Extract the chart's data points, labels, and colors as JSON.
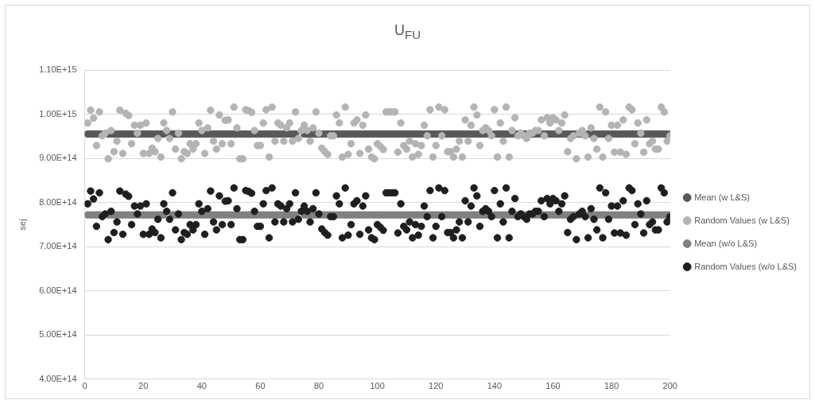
{
  "chart_data": {
    "type": "scatter",
    "title": "U$_{FU}$",
    "ylabel": "sej",
    "xlim": [
      0,
      200
    ],
    "xticks": [
      0,
      20,
      40,
      60,
      80,
      100,
      120,
      140,
      160,
      180,
      200
    ],
    "ylim": [
      400000000000000.0,
      1100000000000000.0
    ],
    "yticks": [
      {
        "value": 400000000000000.0,
        "label": "4.00E+14"
      },
      {
        "value": 500000000000000.0,
        "label": "5.00E+14"
      },
      {
        "value": 600000000000000.0,
        "label": "6.00E+14"
      },
      {
        "value": 700000000000000.0,
        "label": "7.00E+14"
      },
      {
        "value": 800000000000000.0,
        "label": "8.00E+14"
      },
      {
        "value": 900000000000000.0,
        "label": "9.00E+14"
      },
      {
        "value": 1000000000000000.0,
        "label": "1.00E+15"
      },
      {
        "value": 1100000000000000.0,
        "label": "1.10E+15"
      }
    ],
    "grid": "y",
    "legend": "right",
    "marker": "circle",
    "x": [
      1,
      2,
      3,
      4,
      5,
      6,
      7,
      8,
      9,
      10,
      11,
      12,
      13,
      14,
      15,
      16,
      17,
      18,
      19,
      20,
      21,
      22,
      23,
      24,
      25,
      26,
      27,
      28,
      29,
      30,
      31,
      32,
      33,
      34,
      35,
      36,
      37,
      38,
      39,
      40,
      41,
      42,
      43,
      44,
      45,
      46,
      47,
      48,
      49,
      50,
      51,
      52,
      53,
      54,
      55,
      56,
      57,
      58,
      59,
      60,
      61,
      62,
      63,
      64,
      65,
      66,
      67,
      68,
      69,
      70,
      71,
      72,
      73,
      74,
      75,
      76,
      77,
      78,
      79,
      80,
      81,
      82,
      83,
      84,
      85,
      86,
      87,
      88,
      89,
      90,
      91,
      92,
      93,
      94,
      95,
      96,
      97,
      98,
      99,
      100,
      101,
      102,
      103,
      104,
      105,
      106,
      107,
      108,
      109,
      110,
      111,
      112,
      113,
      114,
      115,
      116,
      117,
      118,
      119,
      120,
      121,
      122,
      123,
      124,
      125,
      126,
      127,
      128,
      129,
      130,
      131,
      132,
      133,
      134,
      135,
      136,
      137,
      138,
      139,
      140,
      141,
      142,
      143,
      144,
      145,
      146,
      147,
      148,
      149,
      150,
      151,
      152,
      153,
      154,
      155,
      156,
      157,
      158,
      159,
      160,
      161,
      162,
      163,
      164,
      165,
      166,
      167,
      168,
      169,
      170,
      171,
      172,
      173,
      174,
      175,
      176,
      177,
      178,
      179,
      180,
      181,
      182,
      183,
      184,
      185,
      186,
      187,
      188,
      189,
      190,
      191,
      192,
      193,
      194,
      195,
      196,
      197,
      198,
      199,
      200
    ],
    "series": [
      {
        "name": "Mean (w L&S)",
        "color": "#595959",
        "values": [
          955000000000000.0,
          955000000000000.0,
          955000000000000.0,
          955000000000000.0,
          955000000000000.0,
          955000000000000.0,
          null,
          955000000000000.0,
          955000000000000.0,
          955000000000000.0,
          955000000000000.0,
          955000000000000.0,
          955000000000000.0,
          955000000000000.0,
          955000000000000.0,
          955000000000000.0,
          955000000000000.0,
          955000000000000.0,
          955000000000000.0,
          955000000000000.0,
          955000000000000.0,
          955000000000000.0,
          955000000000000.0,
          955000000000000.0,
          955000000000000.0,
          955000000000000.0,
          955000000000000.0,
          null,
          955000000000000.0,
          955000000000000.0,
          955000000000000.0,
          955000000000000.0,
          955000000000000.0,
          955000000000000.0,
          955000000000000.0,
          955000000000000.0,
          955000000000000.0,
          955000000000000.0,
          955000000000000.0,
          955000000000000.0,
          955000000000000.0,
          955000000000000.0,
          955000000000000.0,
          955000000000000.0,
          955000000000000.0,
          955000000000000.0,
          955000000000000.0,
          955000000000000.0,
          955000000000000.0,
          955000000000000.0,
          955000000000000.0,
          955000000000000.0,
          955000000000000.0,
          955000000000000.0,
          955000000000000.0,
          955000000000000.0,
          955000000000000.0,
          955000000000000.0,
          955000000000000.0,
          955000000000000.0,
          955000000000000.0,
          955000000000000.0,
          955000000000000.0,
          955000000000000.0,
          955000000000000.0,
          955000000000000.0,
          955000000000000.0,
          955000000000000.0,
          955000000000000.0,
          955000000000000.0,
          955000000000000.0,
          955000000000000.0,
          null,
          null,
          955000000000000.0,
          955000000000000.0,
          955000000000000.0,
          955000000000000.0,
          955000000000000.0,
          955000000000000.0,
          955000000000000.0,
          955000000000000.0,
          955000000000000.0,
          955000000000000.0,
          955000000000000.0,
          955000000000000.0,
          955000000000000.0,
          955000000000000.0,
          955000000000000.0,
          955000000000000.0,
          955000000000000.0,
          955000000000000.0,
          955000000000000.0,
          955000000000000.0,
          955000000000000.0,
          955000000000000.0,
          955000000000000.0,
          955000000000000.0,
          955000000000000.0,
          955000000000000.0,
          955000000000000.0,
          955000000000000.0,
          955000000000000.0,
          955000000000000.0,
          955000000000000.0,
          955000000000000.0,
          955000000000000.0,
          955000000000000.0,
          955000000000000.0,
          955000000000000.0,
          955000000000000.0,
          955000000000000.0,
          955000000000000.0,
          955000000000000.0,
          955000000000000.0,
          955000000000000.0,
          955000000000000.0,
          955000000000000.0,
          955000000000000.0,
          955000000000000.0,
          955000000000000.0,
          955000000000000.0,
          955000000000000.0,
          955000000000000.0,
          955000000000000.0,
          955000000000000.0,
          955000000000000.0,
          955000000000000.0,
          955000000000000.0,
          955000000000000.0,
          955000000000000.0,
          955000000000000.0,
          955000000000000.0,
          955000000000000.0,
          955000000000000.0,
          955000000000000.0,
          955000000000000.0,
          955000000000000.0,
          null,
          955000000000000.0,
          955000000000000.0,
          955000000000000.0,
          955000000000000.0,
          955000000000000.0,
          955000000000000.0,
          955000000000000.0,
          955000000000000.0,
          955000000000000.0,
          null,
          955000000000000.0,
          955000000000000.0,
          null,
          955000000000000.0,
          955000000000000.0,
          955000000000000.0,
          955000000000000.0,
          955000000000000.0,
          955000000000000.0,
          955000000000000.0,
          955000000000000.0,
          955000000000000.0,
          955000000000000.0,
          955000000000000.0,
          955000000000000.0,
          955000000000000.0,
          955000000000000.0,
          955000000000000.0,
          955000000000000.0,
          955000000000000.0,
          955000000000000.0,
          null,
          955000000000000.0,
          955000000000000.0,
          955000000000000.0,
          955000000000000.0,
          955000000000000.0,
          955000000000000.0,
          955000000000000.0,
          955000000000000.0,
          955000000000000.0,
          955000000000000.0,
          955000000000000.0,
          955000000000000.0,
          955000000000000.0,
          955000000000000.0,
          955000000000000.0,
          955000000000000.0,
          955000000000000.0,
          955000000000000.0,
          955000000000000.0,
          955000000000000.0,
          955000000000000.0,
          955000000000000.0,
          955000000000000.0,
          955000000000000.0,
          955000000000000.0,
          955000000000000.0,
          955000000000000.0,
          955000000000000.0,
          955000000000000.0
        ]
      },
      {
        "name": "Random Values (w L&S)",
        "color": "#b4b4b4",
        "values": [
          980000000000000.0,
          1009000000000000.0,
          991000000000000.0,
          929000000000000.0,
          1005000000000000.0,
          951000000000000.0,
          957000000000000.0,
          899000000000000.0,
          963000000000000.0,
          915000000000000.0,
          939000000000000.0,
          1009000000000000.0,
          911000000000000.0,
          1002000000000000.0,
          997000000000000.0,
          933000000000000.0,
          975000000000000.0,
          957000000000000.0,
          975000000000000.0,
          911000000000000.0,
          980000000000000.0,
          911000000000000.0,
          923000000000000.0,
          915000000000000.0,
          945000000000000.0,
          903000000000000.0,
          980000000000000.0,
          963000000000000.0,
          945000000000000.0,
          1005000000000000.0,
          921000000000000.0,
          957000000000000.0,
          899000000000000.0,
          915000000000000.0,
          911000000000000.0,
          933000000000000.0,
          921000000000000.0,
          933000000000000.0,
          980000000000000.0,
          963000000000000.0,
          911000000000000.0,
          969000000000000.0,
          1009000000000000.0,
          939000000000000.0,
          921000000000000.0,
          998000000000000.0,
          933000000000000.0,
          986000000000000.0,
          987000000000000.0,
          933000000000000.0,
          1016000000000000.0,
          969000000000000.0,
          899000000000000.0,
          899000000000000.0,
          1010000000000000.0,
          1008000000000000.0,
          1004000000000000.0,
          963000000000000.0,
          929000000000000.0,
          929000000000000.0,
          980000000000000.0,
          1010000000000000.0,
          903000000000000.0,
          1016000000000000.0,
          939000000000000.0,
          980000000000000.0,
          975000000000000.0,
          939000000000000.0,
          969000000000000.0,
          980000000000000.0,
          939000000000000.0,
          1005000000000000.0,
          945000000000000.0,
          963000000000000.0,
          975000000000000.0,
          963000000000000.0,
          939000000000000.0,
          969000000000000.0,
          1005000000000000.0,
          957000000000000.0,
          923000000000000.0,
          915000000000000.0,
          909000000000000.0,
          951000000000000.0,
          951000000000000.0,
          998000000000000.0,
          980000000000000.0,
          903000000000000.0,
          1016000000000000.0,
          909000000000000.0,
          933000000000000.0,
          980000000000000.0,
          987000000000000.0,
          911000000000000.0,
          975000000000000.0,
          998000000000000.0,
          921000000000000.0,
          903000000000000.0,
          899000000000000.0,
          933000000000000.0,
          927000000000000.0,
          920000000000000.0,
          1005000000000000.0,
          1005000000000000.0,
          1005000000000000.0,
          1005000000000000.0,
          914000000000000.0,
          980000000000000.0,
          929000000000000.0,
          921000000000000.0,
          939000000000000.0,
          903000000000000.0,
          933000000000000.0,
          909000000000000.0,
          929000000000000.0,
          975000000000000.0,
          951000000000000.0,
          1010000000000000.0,
          903000000000000.0,
          929000000000000.0,
          1016000000000000.0,
          951000000000000.0,
          1010000000000000.0,
          915000000000000.0,
          915000000000000.0,
          903000000000000.0,
          921000000000000.0,
          939000000000000.0,
          903000000000000.0,
          987000000000000.0,
          939000000000000.0,
          975000000000000.0,
          1016000000000000.0,
          998000000000000.0,
          929000000000000.0,
          963000000000000.0,
          969000000000000.0,
          963000000000000.0,
          951000000000000.0,
          1010000000000000.0,
          903000000000000.0,
          980000000000000.0,
          939000000000000.0,
          1016000000000000.0,
          903000000000000.0,
          963000000000000.0,
          992000000000000.0,
          951000000000000.0,
          957000000000000.0,
          951000000000000.0,
          945000000000000.0,
          957000000000000.0,
          957000000000000.0,
          963000000000000.0,
          963000000000000.0,
          987000000000000.0,
          951000000000000.0,
          992000000000000.0,
          980000000000000.0,
          992000000000000.0,
          987000000000000.0,
          963000000000000.0,
          980000000000000.0,
          998000000000000.0,
          915000000000000.0,
          945000000000000.0,
          951000000000000.0,
          899000000000000.0,
          957000000000000.0,
          963000000000000.0,
          951000000000000.0,
          903000000000000.0,
          969000000000000.0,
          945000000000000.0,
          921000000000000.0,
          1016000000000000.0,
          903000000000000.0,
          1005000000000000.0,
          945000000000000.0,
          975000000000000.0,
          914000000000000.0,
          975000000000000.0,
          914000000000000.0,
          987000000000000.0,
          909000000000000.0,
          1016000000000000.0,
          1010000000000000.0,
          933000000000000.0,
          980000000000000.0,
          957000000000000.0,
          914000000000000.0,
          987000000000000.0,
          933000000000000.0,
          939000000000000.0,
          921000000000000.0,
          921000000000000.0,
          1016000000000000.0,
          1005000000000000.0,
          939000000000000.0,
          951000000000000.0
        ]
      },
      {
        "name": "Mean (w/o L&S)",
        "color": "#808080",
        "values": [
          772000000000000.0,
          772000000000000.0,
          772000000000000.0,
          772000000000000.0,
          772000000000000.0,
          772000000000000.0,
          null,
          772000000000000.0,
          772000000000000.0,
          772000000000000.0,
          772000000000000.0,
          772000000000000.0,
          772000000000000.0,
          772000000000000.0,
          772000000000000.0,
          772000000000000.0,
          772000000000000.0,
          772000000000000.0,
          772000000000000.0,
          772000000000000.0,
          772000000000000.0,
          772000000000000.0,
          772000000000000.0,
          772000000000000.0,
          772000000000000.0,
          772000000000000.0,
          772000000000000.0,
          null,
          null,
          772000000000000.0,
          772000000000000.0,
          772000000000000.0,
          772000000000000.0,
          772000000000000.0,
          772000000000000.0,
          772000000000000.0,
          772000000000000.0,
          772000000000000.0,
          772000000000000.0,
          772000000000000.0,
          772000000000000.0,
          772000000000000.0,
          772000000000000.0,
          772000000000000.0,
          772000000000000.0,
          772000000000000.0,
          772000000000000.0,
          772000000000000.0,
          772000000000000.0,
          772000000000000.0,
          772000000000000.0,
          772000000000000.0,
          772000000000000.0,
          772000000000000.0,
          772000000000000.0,
          772000000000000.0,
          772000000000000.0,
          772000000000000.0,
          772000000000000.0,
          772000000000000.0,
          772000000000000.0,
          772000000000000.0,
          772000000000000.0,
          772000000000000.0,
          772000000000000.0,
          772000000000000.0,
          772000000000000.0,
          772000000000000.0,
          772000000000000.0,
          772000000000000.0,
          772000000000000.0,
          772000000000000.0,
          null,
          null,
          772000000000000.0,
          772000000000000.0,
          772000000000000.0,
          772000000000000.0,
          772000000000000.0,
          772000000000000.0,
          772000000000000.0,
          772000000000000.0,
          772000000000000.0,
          772000000000000.0,
          772000000000000.0,
          772000000000000.0,
          772000000000000.0,
          772000000000000.0,
          772000000000000.0,
          772000000000000.0,
          772000000000000.0,
          772000000000000.0,
          772000000000000.0,
          772000000000000.0,
          772000000000000.0,
          772000000000000.0,
          772000000000000.0,
          772000000000000.0,
          772000000000000.0,
          772000000000000.0,
          772000000000000.0,
          772000000000000.0,
          772000000000000.0,
          772000000000000.0,
          772000000000000.0,
          772000000000000.0,
          772000000000000.0,
          772000000000000.0,
          772000000000000.0,
          772000000000000.0,
          772000000000000.0,
          772000000000000.0,
          772000000000000.0,
          772000000000000.0,
          772000000000000.0,
          772000000000000.0,
          772000000000000.0,
          772000000000000.0,
          772000000000000.0,
          772000000000000.0,
          772000000000000.0,
          772000000000000.0,
          772000000000000.0,
          772000000000000.0,
          772000000000000.0,
          772000000000000.0,
          772000000000000.0,
          772000000000000.0,
          772000000000000.0,
          772000000000000.0,
          772000000000000.0,
          772000000000000.0,
          772000000000000.0,
          772000000000000.0,
          772000000000000.0,
          772000000000000.0,
          772000000000000.0,
          772000000000000.0,
          null,
          772000000000000.0,
          772000000000000.0,
          772000000000000.0,
          772000000000000.0,
          772000000000000.0,
          772000000000000.0,
          772000000000000.0,
          772000000000000.0,
          772000000000000.0,
          null,
          772000000000000.0,
          772000000000000.0,
          null,
          772000000000000.0,
          772000000000000.0,
          772000000000000.0,
          772000000000000.0,
          772000000000000.0,
          772000000000000.0,
          772000000000000.0,
          772000000000000.0,
          772000000000000.0,
          772000000000000.0,
          772000000000000.0,
          772000000000000.0,
          772000000000000.0,
          772000000000000.0,
          772000000000000.0,
          772000000000000.0,
          772000000000000.0,
          null,
          null,
          772000000000000.0,
          772000000000000.0,
          772000000000000.0,
          772000000000000.0,
          772000000000000.0,
          772000000000000.0,
          772000000000000.0,
          772000000000000.0,
          772000000000000.0,
          772000000000000.0,
          772000000000000.0,
          772000000000000.0,
          772000000000000.0,
          772000000000000.0,
          772000000000000.0,
          772000000000000.0,
          772000000000000.0,
          772000000000000.0,
          772000000000000.0,
          772000000000000.0,
          772000000000000.0,
          772000000000000.0,
          772000000000000.0,
          772000000000000.0,
          772000000000000.0,
          772000000000000.0,
          772000000000000.0,
          772000000000000.0,
          772000000000000.0
        ]
      },
      {
        "name": "Random Values (w/o L&S)",
        "color": "#1f1f1f",
        "values": [
          797000000000000.0,
          826000000000000.0,
          808000000000000.0,
          746000000000000.0,
          822000000000000.0,
          768000000000000.0,
          774000000000000.0,
          716000000000000.0,
          780000000000000.0,
          732000000000000.0,
          756000000000000.0,
          826000000000000.0,
          728000000000000.0,
          819000000000000.0,
          814000000000000.0,
          750000000000000.0,
          792000000000000.0,
          774000000000000.0,
          792000000000000.0,
          728000000000000.0,
          797000000000000.0,
          728000000000000.0,
          740000000000000.0,
          732000000000000.0,
          762000000000000.0,
          720000000000000.0,
          797000000000000.0,
          780000000000000.0,
          762000000000000.0,
          822000000000000.0,
          738000000000000.0,
          774000000000000.0,
          716000000000000.0,
          732000000000000.0,
          728000000000000.0,
          750000000000000.0,
          738000000000000.0,
          750000000000000.0,
          797000000000000.0,
          780000000000000.0,
          728000000000000.0,
          786000000000000.0,
          826000000000000.0,
          756000000000000.0,
          738000000000000.0,
          815000000000000.0,
          750000000000000.0,
          803000000000000.0,
          804000000000000.0,
          750000000000000.0,
          833000000000000.0,
          786000000000000.0,
          716000000000000.0,
          716000000000000.0,
          827000000000000.0,
          825000000000000.0,
          821000000000000.0,
          780000000000000.0,
          746000000000000.0,
          746000000000000.0,
          797000000000000.0,
          827000000000000.0,
          720000000000000.0,
          833000000000000.0,
          756000000000000.0,
          797000000000000.0,
          792000000000000.0,
          756000000000000.0,
          786000000000000.0,
          797000000000000.0,
          756000000000000.0,
          822000000000000.0,
          762000000000000.0,
          780000000000000.0,
          792000000000000.0,
          780000000000000.0,
          756000000000000.0,
          786000000000000.0,
          822000000000000.0,
          774000000000000.0,
          740000000000000.0,
          732000000000000.0,
          726000000000000.0,
          768000000000000.0,
          768000000000000.0,
          815000000000000.0,
          797000000000000.0,
          720000000000000.0,
          833000000000000.0,
          726000000000000.0,
          750000000000000.0,
          797000000000000.0,
          804000000000000.0,
          728000000000000.0,
          792000000000000.0,
          815000000000000.0,
          738000000000000.0,
          720000000000000.0,
          716000000000000.0,
          750000000000000.0,
          744000000000000.0,
          737000000000000.0,
          822000000000000.0,
          822000000000000.0,
          822000000000000.0,
          822000000000000.0,
          731000000000000.0,
          797000000000000.0,
          746000000000000.0,
          738000000000000.0,
          756000000000000.0,
          720000000000000.0,
          750000000000000.0,
          726000000000000.0,
          746000000000000.0,
          792000000000000.0,
          768000000000000.0,
          827000000000000.0,
          720000000000000.0,
          746000000000000.0,
          833000000000000.0,
          768000000000000.0,
          827000000000000.0,
          732000000000000.0,
          732000000000000.0,
          720000000000000.0,
          738000000000000.0,
          756000000000000.0,
          720000000000000.0,
          804000000000000.0,
          756000000000000.0,
          792000000000000.0,
          833000000000000.0,
          815000000000000.0,
          746000000000000.0,
          780000000000000.0,
          786000000000000.0,
          780000000000000.0,
          768000000000000.0,
          827000000000000.0,
          720000000000000.0,
          797000000000000.0,
          756000000000000.0,
          833000000000000.0,
          720000000000000.0,
          780000000000000.0,
          809000000000000.0,
          768000000000000.0,
          774000000000000.0,
          768000000000000.0,
          762000000000000.0,
          774000000000000.0,
          774000000000000.0,
          780000000000000.0,
          780000000000000.0,
          804000000000000.0,
          768000000000000.0,
          809000000000000.0,
          797000000000000.0,
          809000000000000.0,
          804000000000000.0,
          780000000000000.0,
          797000000000000.0,
          815000000000000.0,
          732000000000000.0,
          762000000000000.0,
          768000000000000.0,
          716000000000000.0,
          774000000000000.0,
          780000000000000.0,
          768000000000000.0,
          720000000000000.0,
          786000000000000.0,
          762000000000000.0,
          738000000000000.0,
          833000000000000.0,
          720000000000000.0,
          822000000000000.0,
          762000000000000.0,
          792000000000000.0,
          731000000000000.0,
          792000000000000.0,
          731000000000000.0,
          804000000000000.0,
          726000000000000.0,
          833000000000000.0,
          827000000000000.0,
          750000000000000.0,
          797000000000000.0,
          774000000000000.0,
          731000000000000.0,
          804000000000000.0,
          750000000000000.0,
          756000000000000.0,
          738000000000000.0,
          738000000000000.0,
          833000000000000.0,
          822000000000000.0,
          756000000000000.0,
          768000000000000.0
        ]
      }
    ]
  }
}
